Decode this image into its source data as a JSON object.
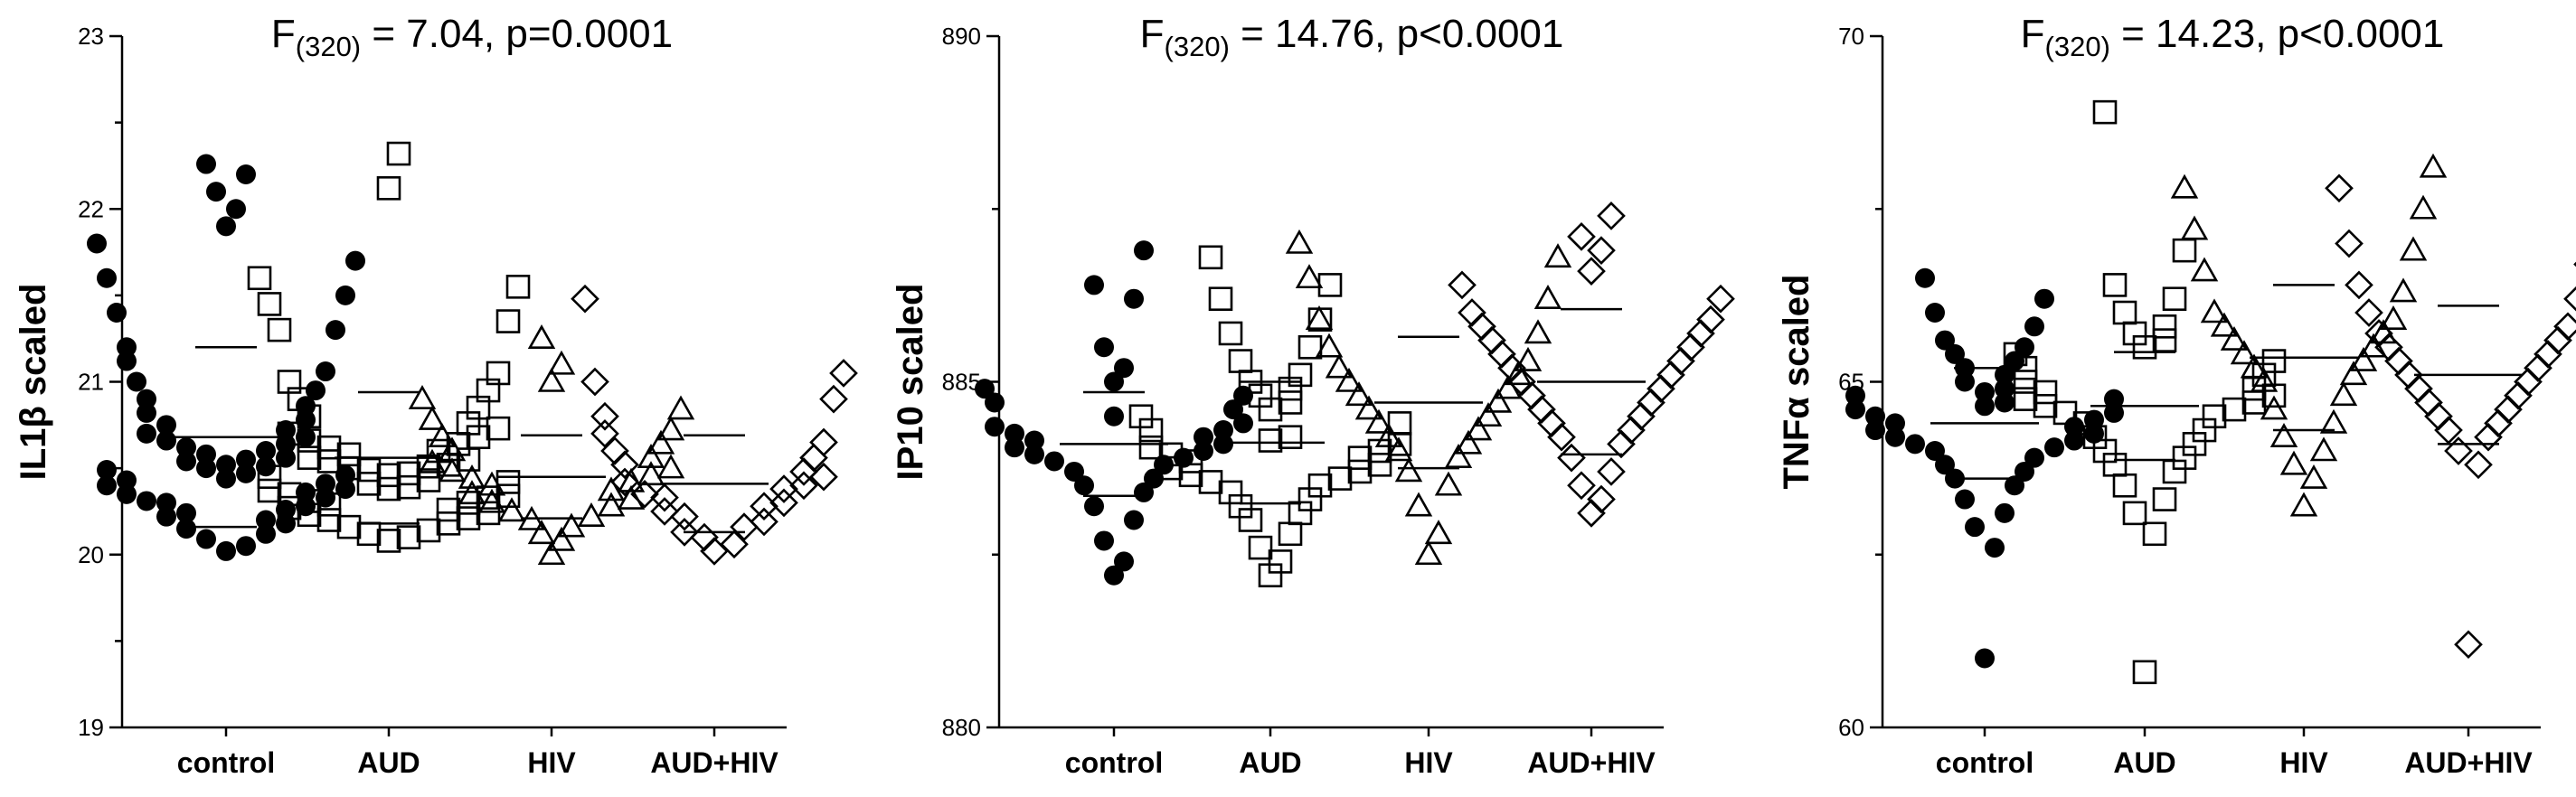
{
  "chart_data": [
    {
      "type": "scatter",
      "title_parts": {
        "prefix": "F",
        "subscript": "(320)",
        "suffix": " = 7.04, p=0.0001"
      },
      "ylabel": "IL1β scaled",
      "ylim": [
        19,
        23
      ],
      "yticks": [
        19,
        20,
        21,
        22,
        23
      ],
      "categories": [
        "control",
        "AUD",
        "HIV",
        "AUD+HIV"
      ],
      "series": [
        {
          "name": "control",
          "marker": "circle-filled",
          "mean": 20.68,
          "sd": 0.52,
          "values": [
            20.02,
            20.05,
            20.09,
            20.12,
            20.15,
            20.18,
            20.2,
            20.22,
            20.24,
            20.26,
            20.28,
            20.3,
            20.31,
            20.33,
            20.35,
            20.36,
            20.38,
            20.4,
            20.41,
            20.43,
            20.44,
            20.46,
            20.47,
            20.49,
            20.5,
            20.51,
            20.52,
            20.54,
            20.55,
            20.56,
            20.58,
            20.6,
            20.62,
            20.64,
            20.66,
            20.68,
            20.7,
            20.72,
            20.75,
            20.78,
            20.82,
            20.86,
            20.9,
            20.95,
            21.0,
            21.06,
            21.12,
            21.2,
            21.3,
            21.4,
            21.5,
            21.6,
            21.7,
            21.8,
            21.9,
            22.0,
            22.1,
            22.2,
            22.26
          ]
        },
        {
          "name": "AUD",
          "marker": "square-open",
          "mean": 20.56,
          "sd": 0.38,
          "values": [
            20.08,
            20.1,
            20.12,
            20.14,
            20.16,
            20.18,
            20.2,
            20.21,
            20.23,
            20.24,
            20.26,
            20.27,
            20.29,
            20.3,
            20.31,
            20.33,
            20.34,
            20.35,
            20.37,
            20.38,
            20.39,
            20.41,
            20.42,
            20.43,
            20.45,
            20.46,
            20.47,
            20.49,
            20.5,
            20.51,
            20.52,
            20.54,
            20.55,
            20.56,
            20.58,
            20.6,
            20.62,
            20.64,
            20.66,
            20.68,
            20.7,
            20.73,
            20.76,
            20.8,
            20.85,
            20.9,
            20.95,
            21.0,
            21.05,
            21.3,
            21.35,
            21.45,
            21.55,
            21.6,
            22.12,
            22.32
          ]
        },
        {
          "name": "HIV",
          "marker": "triangle-open",
          "mean": 20.45,
          "sd": 0.24,
          "values": [
            20.0,
            20.08,
            20.12,
            20.16,
            20.2,
            20.22,
            20.25,
            20.28,
            20.3,
            20.32,
            20.35,
            20.37,
            20.4,
            20.42,
            20.44,
            20.46,
            20.48,
            20.5,
            20.53,
            20.56,
            20.6,
            20.64,
            20.68,
            20.72,
            20.78,
            20.84,
            20.9,
            21.0,
            21.1,
            21.25
          ]
        },
        {
          "name": "AUD+HIV",
          "marker": "diamond-open",
          "mean": 20.41,
          "sd": 0.28,
          "values": [
            20.02,
            20.06,
            20.1,
            20.13,
            20.16,
            20.19,
            20.22,
            20.25,
            20.28,
            20.3,
            20.33,
            20.35,
            20.38,
            20.4,
            20.42,
            20.45,
            20.48,
            20.52,
            20.56,
            20.6,
            20.65,
            20.7,
            20.8,
            20.9,
            21.0,
            21.05,
            21.48
          ]
        }
      ]
    },
    {
      "type": "scatter",
      "title_parts": {
        "prefix": "F",
        "subscript": "(320)",
        "suffix": " = 14.76, p<0.0001"
      },
      "ylabel": "IP10 scaled",
      "ylim": [
        880,
        890
      ],
      "yticks": [
        880,
        885,
        890
      ],
      "categories": [
        "control",
        "AUD",
        "HIV",
        "AUD+HIV"
      ],
      "series": [
        {
          "name": "control",
          "marker": "circle-filled",
          "mean": 884.1,
          "sd": 0.75,
          "values": [
            882.2,
            882.4,
            882.7,
            883.0,
            883.2,
            883.4,
            883.5,
            883.6,
            883.7,
            883.8,
            883.85,
            883.9,
            883.95,
            884.0,
            884.05,
            884.1,
            884.15,
            884.2,
            884.25,
            884.3,
            884.35,
            884.4,
            884.5,
            884.6,
            884.7,
            884.8,
            884.9,
            885.0,
            885.2,
            885.5,
            886.2,
            886.4,
            886.9
          ]
        },
        {
          "name": "AUD",
          "marker": "square-open",
          "mean": 884.12,
          "sd": 0.88,
          "values": [
            882.2,
            882.4,
            882.6,
            882.8,
            883.0,
            883.1,
            883.2,
            883.3,
            883.4,
            883.5,
            883.55,
            883.6,
            883.65,
            883.7,
            883.75,
            883.8,
            883.85,
            883.9,
            883.95,
            884.0,
            884.05,
            884.1,
            884.15,
            884.2,
            884.3,
            884.4,
            884.5,
            884.6,
            884.7,
            884.8,
            884.9,
            885.0,
            885.1,
            885.3,
            885.5,
            885.7,
            885.9,
            886.2,
            886.4,
            886.8
          ]
        },
        {
          "name": "HIV",
          "marker": "triangle-open",
          "mean": 884.7,
          "sd": 0.95,
          "values": [
            882.5,
            882.8,
            883.2,
            883.5,
            883.7,
            883.9,
            884.0,
            884.1,
            884.2,
            884.3,
            884.4,
            884.5,
            884.6,
            884.7,
            884.8,
            884.9,
            885.0,
            885.1,
            885.2,
            885.3,
            885.5,
            885.7,
            885.9,
            886.2,
            886.5,
            886.8,
            887.0
          ]
        },
        {
          "name": "AUD+HIV",
          "marker": "diamond-open",
          "mean": 885.0,
          "sd": 1.05,
          "values": [
            883.1,
            883.3,
            883.5,
            883.7,
            883.9,
            884.1,
            884.2,
            884.3,
            884.4,
            884.5,
            884.6,
            884.7,
            884.8,
            884.9,
            885.0,
            885.1,
            885.2,
            885.3,
            885.4,
            885.5,
            885.6,
            885.7,
            885.8,
            885.9,
            886.0,
            886.2,
            886.4,
            886.6,
            886.9,
            887.1,
            887.4
          ]
        }
      ]
    },
    {
      "type": "scatter",
      "title_parts": {
        "prefix": "F",
        "subscript": "(320)",
        "suffix": " = 14.23, p<0.0001"
      },
      "ylabel": "TNFα scaled",
      "ylim": [
        60,
        70
      ],
      "yticks": [
        60,
        65,
        70
      ],
      "categories": [
        "control",
        "AUD",
        "HIV",
        "AUD+HIV"
      ],
      "series": [
        {
          "name": "control",
          "marker": "circle-filled",
          "mean": 64.4,
          "sd": 0.8,
          "values": [
            61.0,
            62.6,
            62.9,
            63.1,
            63.3,
            63.5,
            63.6,
            63.7,
            63.8,
            63.9,
            64.0,
            64.05,
            64.1,
            64.15,
            64.2,
            64.25,
            64.3,
            64.35,
            64.4,
            64.45,
            64.5,
            64.55,
            64.6,
            64.65,
            64.7,
            64.75,
            64.8,
            64.85,
            64.9,
            65.0,
            65.1,
            65.2,
            65.3,
            65.4,
            65.5,
            65.6,
            65.8,
            66.0,
            66.2,
            66.5
          ]
        },
        {
          "name": "AUD",
          "marker": "square-open",
          "mean": 64.65,
          "sd": 0.78,
          "values": [
            60.8,
            62.8,
            63.1,
            63.3,
            63.5,
            63.7,
            63.8,
            63.9,
            64.0,
            64.1,
            64.2,
            64.3,
            64.4,
            64.5,
            64.55,
            64.6,
            64.65,
            64.7,
            64.75,
            64.8,
            64.85,
            64.9,
            65.0,
            65.1,
            65.2,
            65.3,
            65.4,
            65.5,
            65.6,
            65.7,
            65.8,
            66.0,
            66.2,
            66.4,
            66.9,
            68.9
          ]
        },
        {
          "name": "HIV",
          "marker": "triangle-open",
          "mean": 65.35,
          "sd": 1.05,
          "values": [
            63.2,
            63.6,
            63.8,
            64.0,
            64.2,
            64.4,
            64.6,
            64.8,
            65.0,
            65.1,
            65.2,
            65.3,
            65.4,
            65.5,
            65.6,
            65.7,
            65.8,
            65.9,
            66.0,
            66.3,
            66.6,
            66.9,
            67.2,
            67.5,
            67.8,
            68.1
          ]
        },
        {
          "name": "AUD+HIV",
          "marker": "diamond-open",
          "mean": 65.1,
          "sd": 1.0,
          "values": [
            61.2,
            63.8,
            64.0,
            64.2,
            64.3,
            64.4,
            64.5,
            64.6,
            64.7,
            64.8,
            64.9,
            65.0,
            65.1,
            65.2,
            65.3,
            65.4,
            65.5,
            65.6,
            65.7,
            65.8,
            66.0,
            66.2,
            66.4,
            66.7,
            67.0,
            67.2,
            67.8
          ]
        }
      ]
    }
  ]
}
